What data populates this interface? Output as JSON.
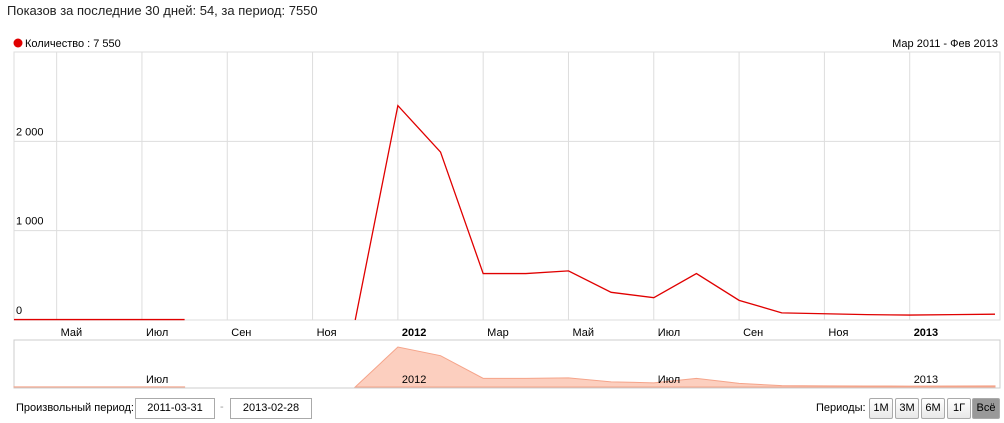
{
  "header": "Показов за последние 30 дней: 54, за период: 7550",
  "chart_data": {
    "type": "line",
    "range_label": "Мар 2011 - Фев 2013",
    "categories": [
      null,
      "Май",
      null,
      "Июл",
      null,
      "Сен",
      null,
      "Ноя",
      null,
      "2012",
      null,
      "Мар",
      null,
      "Май",
      null,
      "Июл",
      null,
      "Сен",
      null,
      "Ноя",
      null,
      "2013",
      null,
      null
    ],
    "series": [
      {
        "name": "Количество : 7 550",
        "color": "#e00000",
        "values": [
          5,
          5,
          5,
          5,
          5,
          null,
          null,
          null,
          0,
          2400,
          1880,
          520,
          520,
          550,
          310,
          250,
          520,
          220,
          80,
          70,
          60,
          55,
          60,
          65
        ]
      }
    ],
    "ylim": [
      0,
      3000
    ],
    "yticks": [
      0,
      {
        "value": 1000,
        "label": "1 000"
      },
      {
        "value": 2000,
        "label": "2 000"
      }
    ],
    "grid": true
  },
  "controls": {
    "custom_label": "Произвольный период:",
    "start": "2011-03-31",
    "end": "2013-02-28",
    "periods_label": "Периоды:",
    "periods": [
      "1М",
      "3М",
      "6М",
      "1Г",
      "Всё"
    ]
  }
}
